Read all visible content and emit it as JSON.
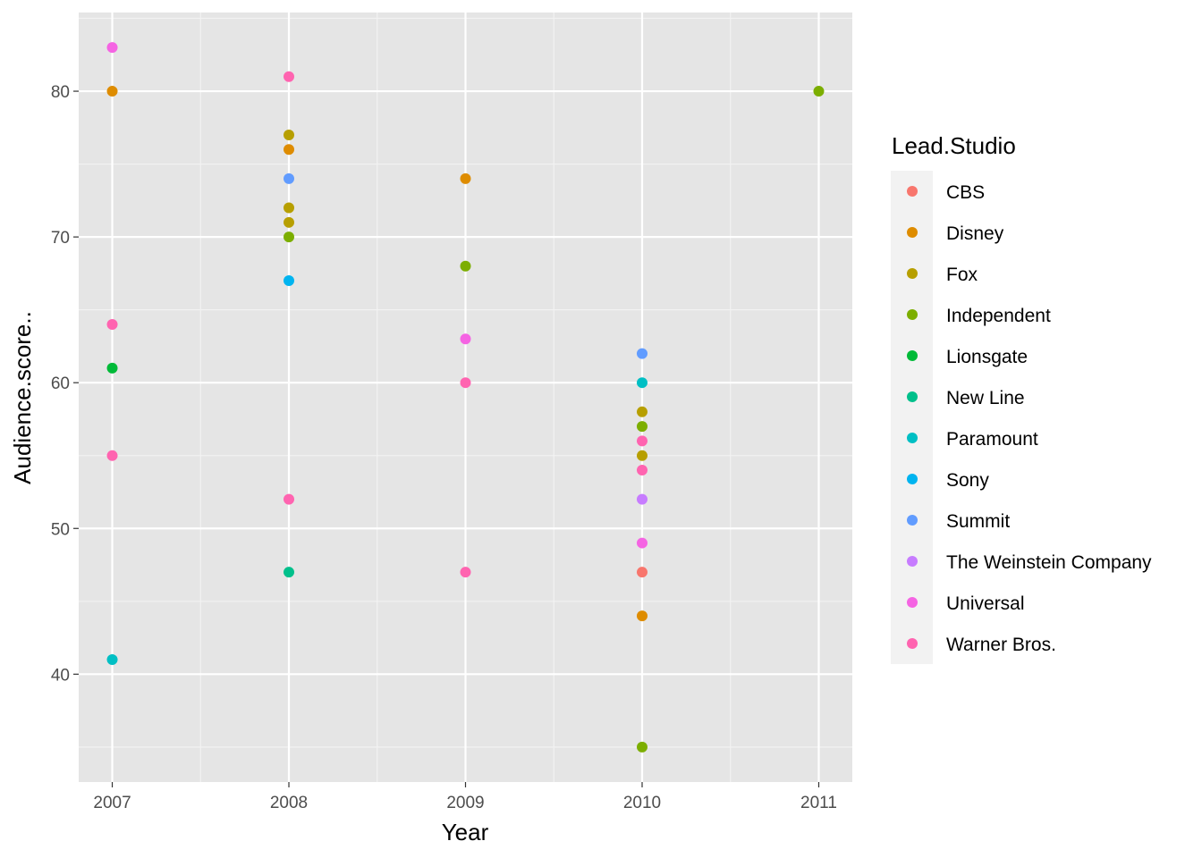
{
  "chart_data": {
    "type": "scatter",
    "xlabel": "Year",
    "ylabel": "Audience.score..",
    "xlim": [
      2006.81,
      2011.19
    ],
    "ylim": [
      32.6,
      85.4
    ],
    "x_ticks": [
      2007,
      2008,
      2009,
      2010,
      2011
    ],
    "x_tick_labels": [
      "2007",
      "2008",
      "2009",
      "2010",
      "2011"
    ],
    "y_ticks": [
      40,
      50,
      60,
      70,
      80
    ],
    "y_tick_labels": [
      "40",
      "50",
      "60",
      "70",
      "80"
    ],
    "grid": true,
    "legend": {
      "title": "Lead.Studio",
      "placement": "right"
    },
    "series": [
      {
        "name": "CBS",
        "color": "#F8766D",
        "points": [
          [
            2010,
            47
          ]
        ]
      },
      {
        "name": "Disney",
        "color": "#DE8C00",
        "points": [
          [
            2007,
            80
          ],
          [
            2008,
            76
          ],
          [
            2009,
            74
          ],
          [
            2010,
            44
          ]
        ]
      },
      {
        "name": "Fox",
        "color": "#B79F00",
        "points": [
          [
            2008,
            77
          ],
          [
            2008,
            72
          ],
          [
            2008,
            71
          ],
          [
            2010,
            58
          ],
          [
            2010,
            55
          ]
        ]
      },
      {
        "name": "Independent",
        "color": "#7CAE00",
        "points": [
          [
            2008,
            70
          ],
          [
            2009,
            68
          ],
          [
            2010,
            57
          ],
          [
            2010,
            35
          ],
          [
            2011,
            80
          ]
        ]
      },
      {
        "name": "Lionsgate",
        "color": "#00BA38",
        "points": [
          [
            2007,
            61
          ]
        ]
      },
      {
        "name": "New Line",
        "color": "#00C08B",
        "points": [
          [
            2008,
            47
          ]
        ]
      },
      {
        "name": "Paramount",
        "color": "#00BFC4",
        "points": [
          [
            2007,
            41
          ],
          [
            2010,
            60
          ]
        ]
      },
      {
        "name": "Sony",
        "color": "#00B4F0",
        "points": [
          [
            2008,
            67
          ]
        ]
      },
      {
        "name": "Summit",
        "color": "#619CFF",
        "points": [
          [
            2008,
            74
          ],
          [
            2010,
            62
          ]
        ]
      },
      {
        "name": "The Weinstein Company",
        "color": "#C77CFF",
        "points": [
          [
            2010,
            52
          ]
        ]
      },
      {
        "name": "Universal",
        "color": "#F564E3",
        "points": [
          [
            2007,
            83
          ],
          [
            2009,
            63
          ],
          [
            2010,
            49
          ]
        ]
      },
      {
        "name": "Warner Bros.",
        "color": "#FF64B0",
        "points": [
          [
            2007,
            64
          ],
          [
            2007,
            55
          ],
          [
            2008,
            81
          ],
          [
            2008,
            52
          ],
          [
            2009,
            60
          ],
          [
            2009,
            47
          ],
          [
            2010,
            56
          ],
          [
            2010,
            54
          ]
        ]
      }
    ]
  }
}
